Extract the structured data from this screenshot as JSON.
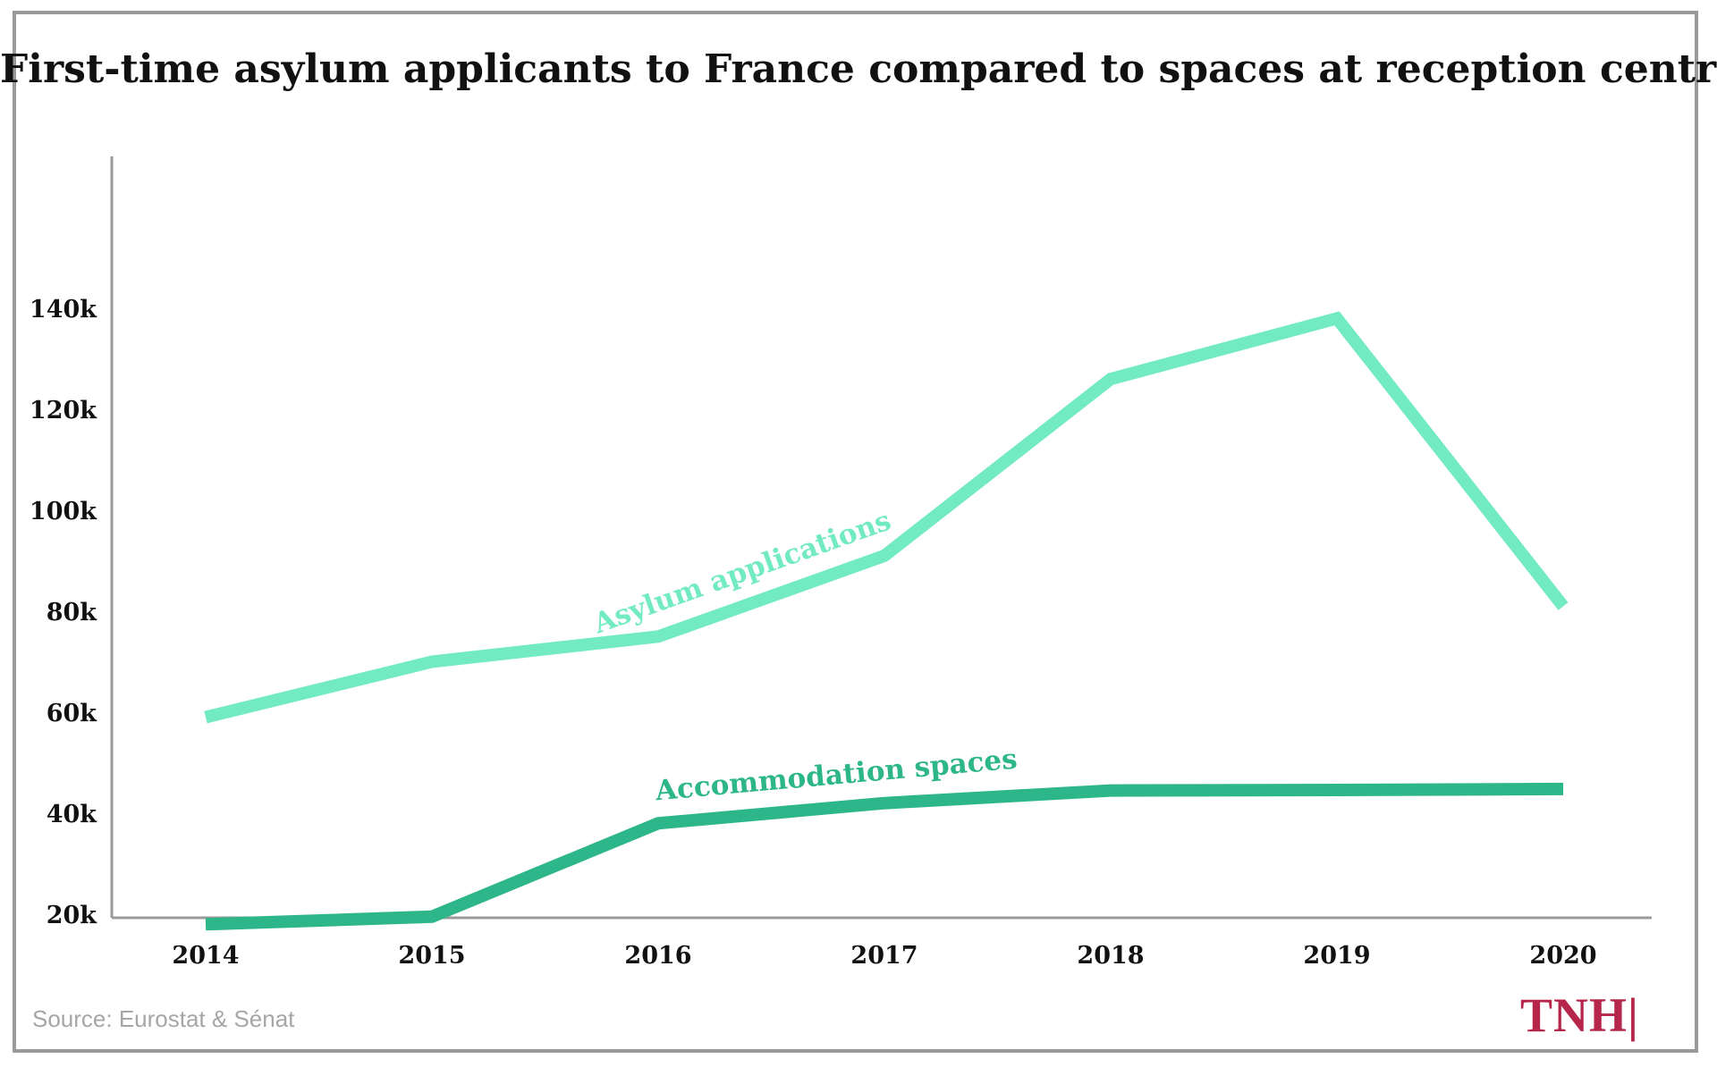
{
  "title": "First-time asylum applicants to France compared to spaces at reception centres",
  "source": "Source: Eurostat & Sénat",
  "logo": "TNH|",
  "colors": {
    "asylum": "#72ebc2",
    "accommodation": "#2db689",
    "logo": "#b5264a",
    "axis": "#9a9a9a"
  },
  "chart_data": {
    "type": "line",
    "x": [
      "2014",
      "2015",
      "2016",
      "2017",
      "2018",
      "2019",
      "2020"
    ],
    "yticks": [
      20000,
      40000,
      60000,
      80000,
      100000,
      120000,
      140000
    ],
    "ytick_labels": [
      "20k",
      "40k",
      "60k",
      "80k",
      "100k",
      "120k",
      "140k"
    ],
    "ylim": [
      0,
      150000
    ],
    "grid": false,
    "series": [
      {
        "name": "Asylum applications",
        "values": [
          59000,
          70000,
          75000,
          91000,
          126000,
          138000,
          81000
        ]
      },
      {
        "name": "Accommodation spaces",
        "values": [
          18000,
          19500,
          38000,
          42000,
          44500,
          44600,
          44800
        ]
      }
    ]
  }
}
